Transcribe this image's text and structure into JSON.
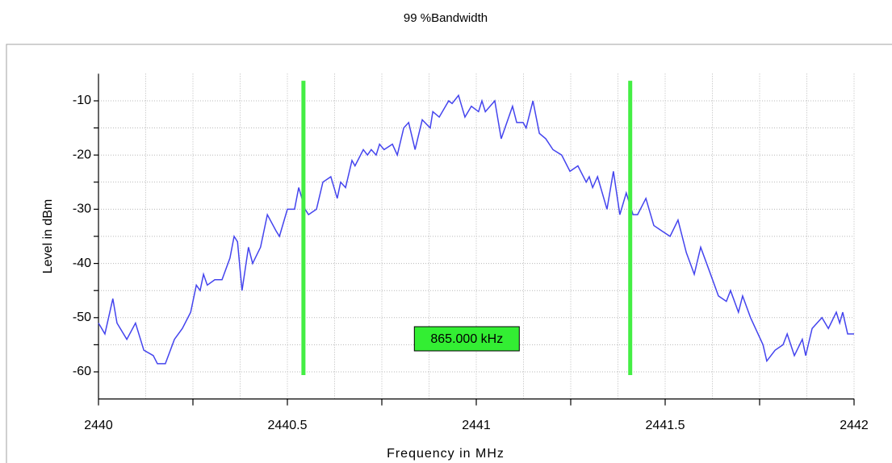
{
  "chart_data": {
    "type": "line",
    "title": "99 %Bandwidth",
    "xlabel": "Frequency in MHz",
    "ylabel": "Level in dBm",
    "xlim": [
      2440,
      2442
    ],
    "ylim": [
      -65,
      -5
    ],
    "xticks": [
      2440,
      2440.5,
      2441,
      2441.5,
      2442
    ],
    "xminorticks": [
      2440.25,
      2440.75,
      2441.25,
      2441.75
    ],
    "xgrid": [
      2440.125,
      2440.25,
      2440.375,
      2440.5,
      2440.625,
      2440.75,
      2440.875,
      2441,
      2441.125,
      2441.25,
      2441.375,
      2441.5,
      2441.625,
      2441.75,
      2441.875,
      2442
    ],
    "yticks": [
      -10,
      -20,
      -30,
      -40,
      -50,
      -60
    ],
    "yminorticks": [
      -15,
      -25,
      -35,
      -45,
      -55
    ],
    "grid": true,
    "markers": {
      "color": "#44ee44",
      "x": [
        2440.5425,
        2441.4075
      ],
      "ylim": [
        -6.3,
        -60.6
      ]
    },
    "annotation": {
      "text": "865.000 kHz",
      "color": "#33ee33"
    },
    "series": [
      {
        "name": "trace",
        "color": "#4444ee",
        "x": [
          2440.0,
          2440.017,
          2440.038,
          2440.049,
          2440.075,
          2440.098,
          2440.12,
          2440.145,
          2440.156,
          2440.177,
          2440.201,
          2440.222,
          2440.244,
          2440.259,
          2440.269,
          2440.278,
          2440.288,
          2440.308,
          2440.327,
          2440.348,
          2440.359,
          2440.368,
          2440.38,
          2440.397,
          2440.408,
          2440.429,
          2440.447,
          2440.47,
          2440.479,
          2440.5,
          2440.519,
          2440.53,
          2440.547,
          2440.556,
          2440.577,
          2440.594,
          2440.615,
          2440.632,
          2440.641,
          2440.654,
          2440.671,
          2440.679,
          2440.701,
          2440.712,
          2440.722,
          2440.735,
          2440.744,
          2440.756,
          2440.778,
          2440.791,
          2440.808,
          2440.821,
          2440.838,
          2440.857,
          2440.878,
          2440.885,
          2440.902,
          2440.927,
          2440.936,
          2440.953,
          2440.97,
          2440.987,
          2441.006,
          2441.015,
          2441.024,
          2441.049,
          2441.066,
          2441.096,
          2441.107,
          2441.124,
          2441.132,
          2441.15,
          2441.167,
          2441.184,
          2441.203,
          2441.226,
          2441.248,
          2441.269,
          2441.291,
          2441.299,
          2441.308,
          2441.321,
          2441.346,
          2441.363,
          2441.38,
          2441.397,
          2441.415,
          2441.427,
          2441.449,
          2441.47,
          2441.491,
          2441.513,
          2441.534,
          2441.556,
          2441.577,
          2441.594,
          2441.615,
          2441.641,
          2441.662,
          2441.673,
          2441.694,
          2441.705,
          2441.726,
          2441.759,
          2441.769,
          2441.791,
          2441.812,
          2441.823,
          2441.842,
          2441.863,
          2441.872,
          2441.889,
          2441.915,
          2441.932,
          2441.953,
          2441.962,
          2441.97,
          2441.983,
          2442.0
        ],
        "values": [
          -51,
          -53,
          -46.5,
          -51,
          -54,
          -51,
          -56,
          -57,
          -58.5,
          -58.5,
          -54,
          -52,
          -49,
          -44,
          -45,
          -42,
          -44,
          -43,
          -43,
          -39,
          -35,
          -36,
          -45,
          -37,
          -40,
          -37,
          -31,
          -34,
          -35,
          -30,
          -30,
          -26,
          -30,
          -31,
          -30,
          -25,
          -24,
          -28,
          -25,
          -26,
          -21,
          -22,
          -19,
          -20,
          -19,
          -20,
          -18,
          -19,
          -18,
          -20,
          -15,
          -14,
          -19,
          -13.5,
          -15,
          -12,
          -13,
          -10,
          -10.5,
          -9,
          -13,
          -11,
          -12,
          -10,
          -12,
          -10,
          -17,
          -11,
          -14,
          -14,
          -15,
          -10,
          -16,
          -17,
          -19,
          -20,
          -23,
          -22,
          -25,
          -24,
          -26,
          -24,
          -30,
          -23,
          -31,
          -27,
          -31,
          -31,
          -28,
          -33,
          -34,
          -35,
          -32,
          -38,
          -42,
          -37,
          -41,
          -46,
          -47,
          -45,
          -49,
          -46,
          -50,
          -55,
          -58,
          -56,
          -55,
          -53,
          -57,
          -54,
          -57,
          -52,
          -50,
          -52,
          -49,
          -51,
          -49,
          -53,
          -53
        ]
      }
    ]
  }
}
